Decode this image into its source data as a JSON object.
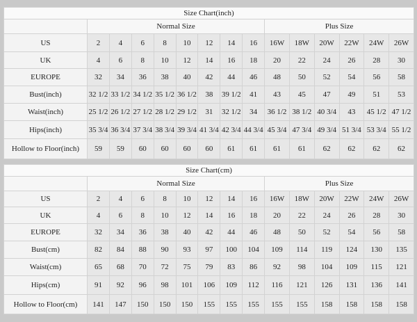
{
  "tables": [
    {
      "title": "Size Chart(inch)",
      "normal_label": "Normal Size",
      "plus_label": "Plus Size",
      "rows": [
        {
          "label": "US",
          "values": [
            "2",
            "4",
            "6",
            "8",
            "10",
            "12",
            "14",
            "16",
            "16W",
            "18W",
            "20W",
            "22W",
            "24W",
            "26W"
          ]
        },
        {
          "label": "UK",
          "values": [
            "4",
            "6",
            "8",
            "10",
            "12",
            "14",
            "16",
            "18",
            "20",
            "22",
            "24",
            "26",
            "28",
            "30"
          ]
        },
        {
          "label": "EUROPE",
          "values": [
            "32",
            "34",
            "36",
            "38",
            "40",
            "42",
            "44",
            "46",
            "48",
            "50",
            "52",
            "54",
            "56",
            "58"
          ]
        },
        {
          "label": "Bust(inch)",
          "values": [
            "32 1/2",
            "33 1/2",
            "34 1/2",
            "35 1/2",
            "36 1/2",
            "38",
            "39 1/2",
            "41",
            "43",
            "45",
            "47",
            "49",
            "51",
            "53"
          ]
        },
        {
          "label": "Waist(inch)",
          "values": [
            "25 1/2",
            "26 1/2",
            "27 1/2",
            "28 1/2",
            "29 1/2",
            "31",
            "32 1/2",
            "34",
            "36 1/2",
            "38 1/2",
            "40 3/4",
            "43",
            "45 1/2",
            "47 1/2"
          ]
        },
        {
          "label": "Hips(inch)",
          "values": [
            "35 3/4",
            "36 3/4",
            "37 3/4",
            "38 3/4",
            "39 3/4",
            "41 3/4",
            "42 3/4",
            "44 3/4",
            "45 3/4",
            "47 3/4",
            "49 3/4",
            "51 3/4",
            "53 3/4",
            "55 1/2"
          ]
        },
        {
          "label": "Hollow to Floor(inch)",
          "values": [
            "59",
            "59",
            "60",
            "60",
            "60",
            "60",
            "61",
            "61",
            "61",
            "61",
            "62",
            "62",
            "62",
            "62"
          ]
        }
      ]
    },
    {
      "title": "Size Chart(cm)",
      "normal_label": "Normal Size",
      "plus_label": "Plus Size",
      "rows": [
        {
          "label": "US",
          "values": [
            "2",
            "4",
            "6",
            "8",
            "10",
            "12",
            "14",
            "16",
            "16W",
            "18W",
            "20W",
            "22W",
            "24W",
            "26W"
          ]
        },
        {
          "label": "UK",
          "values": [
            "4",
            "6",
            "8",
            "10",
            "12",
            "14",
            "16",
            "18",
            "20",
            "22",
            "24",
            "26",
            "28",
            "30"
          ]
        },
        {
          "label": "EUROPE",
          "values": [
            "32",
            "34",
            "36",
            "38",
            "40",
            "42",
            "44",
            "46",
            "48",
            "50",
            "52",
            "54",
            "56",
            "58"
          ]
        },
        {
          "label": "Bust(cm)",
          "values": [
            "82",
            "84",
            "88",
            "90",
            "93",
            "97",
            "100",
            "104",
            "109",
            "114",
            "119",
            "124",
            "130",
            "135"
          ]
        },
        {
          "label": "Waist(cm)",
          "values": [
            "65",
            "68",
            "70",
            "72",
            "75",
            "79",
            "83",
            "86",
            "92",
            "98",
            "104",
            "109",
            "115",
            "121"
          ]
        },
        {
          "label": "Hips(cm)",
          "values": [
            "91",
            "92",
            "96",
            "98",
            "101",
            "106",
            "109",
            "112",
            "116",
            "121",
            "126",
            "131",
            "136",
            "141"
          ]
        },
        {
          "label": "Hollow to Floor(cm)",
          "values": [
            "141",
            "147",
            "150",
            "150",
            "150",
            "155",
            "155",
            "155",
            "155",
            "155",
            "158",
            "158",
            "158",
            "158"
          ]
        }
      ]
    }
  ]
}
